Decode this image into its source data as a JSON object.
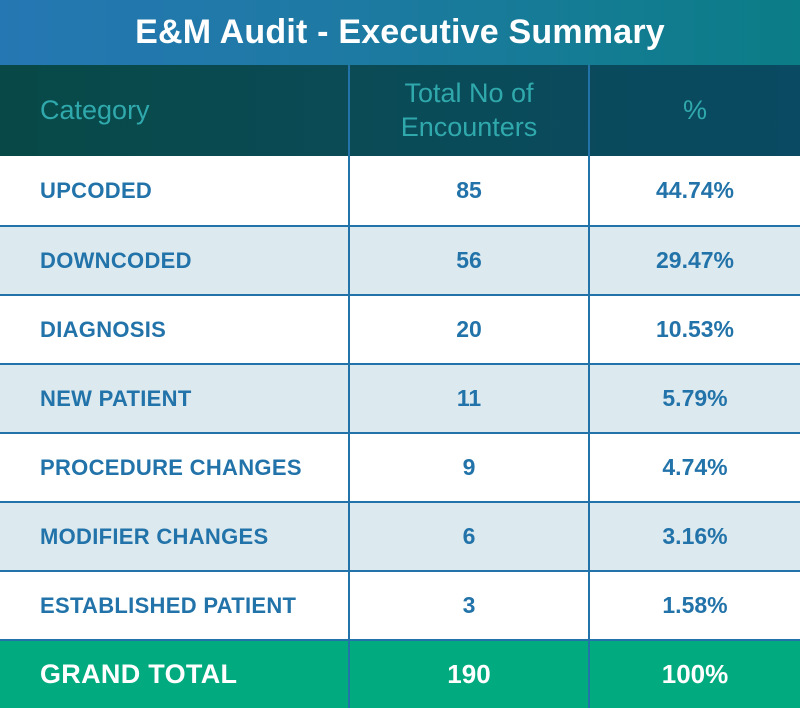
{
  "title": "E&M Audit - Executive Summary",
  "table": {
    "headers": [
      "Category",
      "Total No of Encounters",
      "%"
    ],
    "rows": [
      {
        "category": "UPCODED",
        "encounters": "85",
        "percent": "44.74%"
      },
      {
        "category": "DOWNCODED",
        "encounters": "56",
        "percent": "29.47%"
      },
      {
        "category": "DIAGNOSIS",
        "encounters": "20",
        "percent": "10.53%"
      },
      {
        "category": "NEW PATIENT",
        "encounters": "11",
        "percent": "5.79%"
      },
      {
        "category": "PROCEDURE CHANGES",
        "encounters": "9",
        "percent": "4.74%"
      },
      {
        "category": "MODIFIER CHANGES",
        "encounters": "6",
        "percent": "3.16%"
      },
      {
        "category": "ESTABLISHED PATIENT",
        "encounters": "3",
        "percent": "1.58%"
      }
    ],
    "grand_total": {
      "category": "GRAND TOTAL",
      "encounters": "190",
      "percent": "100%"
    }
  },
  "colors": {
    "title_gradient_start": "#2577b3",
    "title_gradient_end": "#0b7d86",
    "header_gradient_start": "#084947",
    "header_gradient_end": "#0a4a62",
    "header_text": "#30a9ad",
    "row_text": "#2273a9",
    "alt_row_bg": "#dce9ef",
    "grid_border": "#2273a9",
    "grand_total_bg": "#02ab7f",
    "grand_total_text": "#ffffff",
    "title_text": "#ffffff"
  },
  "chart_data": {
    "type": "table",
    "title": "E&M Audit - Executive Summary",
    "columns": [
      "Category",
      "Total No of Encounters",
      "%"
    ],
    "categories": [
      "UPCODED",
      "DOWNCODED",
      "DIAGNOSIS",
      "NEW PATIENT",
      "PROCEDURE CHANGES",
      "MODIFIER CHANGES",
      "ESTABLISHED PATIENT"
    ],
    "series": [
      {
        "name": "Total No of Encounters",
        "values": [
          85,
          56,
          20,
          11,
          9,
          6,
          3
        ]
      },
      {
        "name": "%",
        "values": [
          44.74,
          29.47,
          10.53,
          5.79,
          4.74,
          3.16,
          1.58
        ]
      }
    ],
    "grand_total": {
      "encounters": 190,
      "percent": 100
    }
  }
}
